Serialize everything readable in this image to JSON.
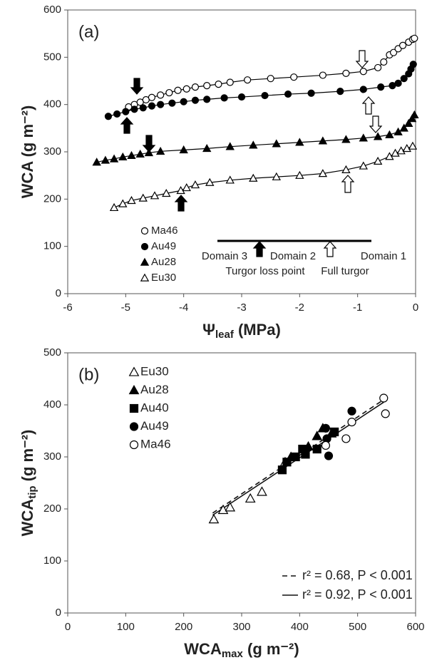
{
  "chart_data": [
    {
      "type": "line",
      "panel_label": "(a)",
      "xlabel": [
        "Ψ",
        "leaf",
        " (MPa)"
      ],
      "ylabel": [
        "WCA (g m⁻²)"
      ],
      "xlim": [
        -6,
        0
      ],
      "ylim": [
        0,
        600
      ],
      "xticks": [
        -6,
        -5,
        -4,
        -3,
        -2,
        -1,
        0
      ],
      "yticks": [
        0,
        100,
        200,
        300,
        400,
        500,
        600
      ],
      "annotations": [
        "Domain 3",
        "Domain 2",
        "Domain 1",
        "Turgor loss point",
        "Full turgor"
      ],
      "series": [
        {
          "name": "Ma46",
          "color": "#000000",
          "marker": "circle",
          "filled": false,
          "x": [
            -4.95,
            -4.85,
            -4.75,
            -4.65,
            -4.55,
            -4.4,
            -4.25,
            -4.1,
            -3.95,
            -3.8,
            -3.6,
            -3.4,
            -3.2,
            -2.9,
            -2.5,
            -2.1,
            -1.6,
            -1.2,
            -0.9,
            -0.65,
            -0.55,
            -0.45,
            -0.38,
            -0.3,
            -0.22,
            -0.12,
            -0.05,
            -0.02
          ],
          "values": [
            395,
            400,
            405,
            410,
            415,
            420,
            425,
            430,
            433,
            437,
            440,
            443,
            447,
            452,
            455,
            458,
            462,
            466,
            470,
            478,
            490,
            505,
            510,
            518,
            525,
            532,
            538,
            540
          ]
        },
        {
          "name": "Au49",
          "color": "#000000",
          "marker": "circle",
          "filled": true,
          "x": [
            -5.3,
            -5.15,
            -5.0,
            -4.85,
            -4.7,
            -4.55,
            -4.4,
            -4.2,
            -4.0,
            -3.8,
            -3.6,
            -3.3,
            -3.0,
            -2.6,
            -2.2,
            -1.8,
            -1.3,
            -0.9,
            -0.6,
            -0.4,
            -0.3,
            -0.2,
            -0.12,
            -0.08,
            -0.04
          ],
          "values": [
            375,
            380,
            385,
            390,
            393,
            397,
            400,
            403,
            406,
            409,
            411,
            414,
            416,
            419,
            422,
            424,
            428,
            432,
            437,
            440,
            445,
            455,
            465,
            475,
            485
          ]
        },
        {
          "name": "Au28",
          "color": "#000000",
          "marker": "triangle",
          "filled": true,
          "x": [
            -5.5,
            -5.35,
            -5.2,
            -5.05,
            -4.9,
            -4.75,
            -4.6,
            -4.4,
            -4.0,
            -3.6,
            -3.2,
            -2.8,
            -2.4,
            -2.0,
            -1.6,
            -1.2,
            -0.9,
            -0.65,
            -0.45,
            -0.3,
            -0.2,
            -0.12,
            -0.06,
            -0.02
          ],
          "values": [
            278,
            282,
            285,
            289,
            292,
            295,
            298,
            301,
            304,
            307,
            311,
            314,
            317,
            320,
            323,
            326,
            329,
            332,
            336,
            342,
            350,
            360,
            370,
            378
          ]
        },
        {
          "name": "Eu30",
          "color": "#000000",
          "marker": "triangle",
          "filled": false,
          "x": [
            -5.2,
            -5.05,
            -4.9,
            -4.7,
            -4.5,
            -4.3,
            -4.05,
            -3.95,
            -3.8,
            -3.55,
            -3.2,
            -2.8,
            -2.4,
            -2.0,
            -1.6,
            -1.2,
            -0.9,
            -0.65,
            -0.45,
            -0.35,
            -0.25,
            -0.15,
            -0.05
          ],
          "values": [
            182,
            190,
            197,
            202,
            207,
            212,
            218,
            224,
            230,
            235,
            240,
            244,
            247,
            250,
            254,
            262,
            270,
            280,
            290,
            297,
            302,
            307,
            312
          ]
        }
      ]
    },
    {
      "type": "scatter",
      "panel_label": "(b)",
      "xlabel": [
        "WCA",
        "max",
        " (g m⁻²)"
      ],
      "ylabel": [
        "WCA",
        "tip",
        " (g m⁻²)"
      ],
      "xlim": [
        0,
        600
      ],
      "ylim": [
        0,
        500
      ],
      "xticks": [
        0,
        100,
        200,
        300,
        400,
        500,
        600
      ],
      "yticks": [
        0,
        100,
        200,
        300,
        400,
        500
      ],
      "series": [
        {
          "name": "Eu30",
          "color": "#000000",
          "marker": "triangle",
          "filled": false,
          "x": [
            252,
            268,
            280,
            315,
            335,
            375
          ],
          "values": [
            180,
            198,
            203,
            220,
            233,
            290
          ]
        },
        {
          "name": "Au28",
          "color": "#000000",
          "marker": "triangle",
          "filled": true,
          "x": [
            385,
            415,
            430,
            440,
            455
          ],
          "values": [
            300,
            320,
            340,
            355,
            345
          ]
        },
        {
          "name": "Au40",
          "color": "#000000",
          "marker": "square",
          "filled": true,
          "x": [
            370,
            378,
            393,
            405,
            410,
            430,
            460
          ],
          "values": [
            275,
            290,
            300,
            315,
            305,
            315,
            348
          ]
        },
        {
          "name": "Au49",
          "color": "#000000",
          "marker": "circle",
          "filled": true,
          "x": [
            410,
            445,
            450,
            490,
            447
          ],
          "values": [
            310,
            355,
            302,
            388,
            335
          ]
        },
        {
          "name": "Ma46",
          "color": "#000000",
          "marker": "circle",
          "filled": false,
          "x": [
            445,
            480,
            490,
            545,
            548
          ],
          "values": [
            322,
            335,
            367,
            413,
            383
          ]
        }
      ],
      "fits": [
        {
          "name": "r² = 0.68, P < 0.001",
          "dashed": true,
          "x": [
            250,
            545
          ],
          "values": [
            192,
            410
          ]
        },
        {
          "name": "r² = 0.92, P < 0.001",
          "dashed": false,
          "x": [
            250,
            545
          ],
          "values": [
            188,
            405
          ]
        }
      ]
    }
  ]
}
